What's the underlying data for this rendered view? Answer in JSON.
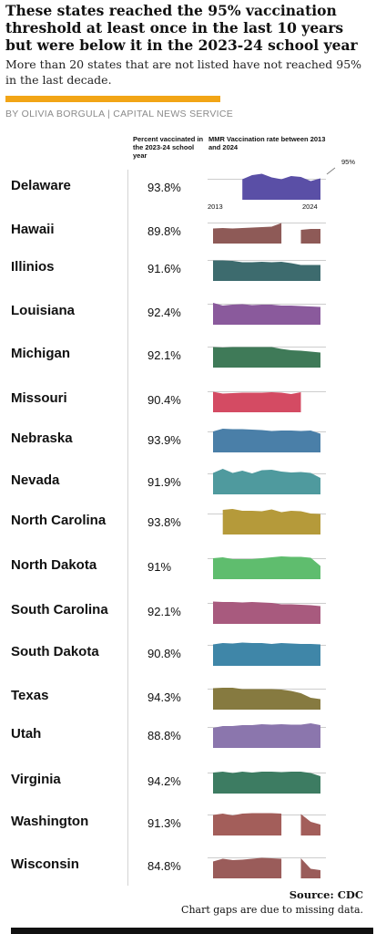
{
  "header": {
    "title": "These states reached the 95% vaccination threshold at least once in the last 10 years but were below it in the 2023-24 school year",
    "subtitle": "More than 20 states that are not listed have not reached 95% in the last decade.",
    "byline": "BY OLIVIA BORGULA | CAPITAL NEWS SERVICE"
  },
  "columns": {
    "pct_header": "Percent vaccinated in the 2023-24 school year",
    "rate_header": "MMR Vaccination rate between 2013 and 2024",
    "threshold_label": "95%",
    "axis_start": "2013",
    "axis_end": "2024"
  },
  "footer": {
    "source": "Source: CDC",
    "note": "Chart gaps are due to missing data."
  },
  "chart_data": {
    "type": "area",
    "title": "These states reached the 95% vaccination threshold at least once in the last 10 years but were below it in the 2023-24 school year",
    "x": [
      "2013",
      "2014",
      "2015",
      "2016",
      "2017",
      "2018",
      "2019",
      "2020",
      "2021",
      "2022",
      "2023",
      "2024"
    ],
    "threshold": 95,
    "ylim": [
      80,
      98
    ],
    "series": [
      {
        "name": "Delaware",
        "pct_label": "93.8%",
        "color": "#5a4fa6",
        "values": [
          null,
          null,
          null,
          95.0,
          95.9,
          96.2,
          95.4,
          95.0,
          95.7,
          95.5,
          94.6,
          95.2
        ]
      },
      {
        "name": "Hawaii",
        "pct_label": "89.8%",
        "color": "#8e5a57",
        "values": [
          93.8,
          93.9,
          93.8,
          93.9,
          94.0,
          94.1,
          94.2,
          95.0,
          null,
          93.5,
          93.7,
          93.7
        ]
      },
      {
        "name": "Illinios",
        "pct_label": "91.6%",
        "color": "#3d6b6e",
        "values": [
          95.0,
          95.0,
          94.9,
          94.6,
          94.6,
          94.7,
          94.6,
          94.7,
          94.4,
          94.0,
          94.0,
          94.0
        ]
      },
      {
        "name": "Louisiana",
        "pct_label": "92.4%",
        "color": "#8a5a9c",
        "values": [
          95.3,
          94.7,
          94.9,
          95.0,
          94.8,
          94.9,
          94.9,
          94.7,
          94.7,
          94.6,
          94.5,
          94.4
        ]
      },
      {
        "name": "Michigan",
        "pct_label": "92.1%",
        "color": "#3f7a58",
        "values": [
          95.0,
          94.9,
          95.0,
          95.0,
          95.0,
          95.0,
          95.0,
          94.6,
          94.3,
          94.2,
          94.0,
          93.8
        ]
      },
      {
        "name": "Missouri",
        "pct_label": "90.4%",
        "color": "#d44b63",
        "values": [
          95.0,
          94.6,
          94.7,
          94.8,
          94.8,
          94.8,
          94.9,
          94.8,
          94.5,
          94.9,
          null,
          95.2
        ]
      },
      {
        "name": "Nebraska",
        "pct_label": "93.9%",
        "color": "#4a7fa8",
        "values": [
          95.1,
          95.7,
          95.6,
          95.6,
          95.5,
          95.4,
          95.2,
          95.3,
          95.3,
          95.2,
          95.3,
          94.6
        ]
      },
      {
        "name": "Nevada",
        "pct_label": "91.9%",
        "color": "#4f9a9e",
        "values": [
          95.2,
          96.1,
          95.2,
          95.7,
          95.1,
          95.8,
          95.9,
          95.5,
          95.3,
          95.4,
          95.2,
          94.1
        ]
      },
      {
        "name": "North Carolina",
        "pct_label": "93.8%",
        "color": "#b59a3a",
        "values": [
          null,
          95.9,
          96.1,
          95.7,
          95.7,
          95.6,
          96.0,
          95.4,
          95.7,
          95.6,
          95.1,
          95.0
        ]
      },
      {
        "name": "North Dakota",
        "pct_label": "91%",
        "color": "#5fbd6e",
        "values": [
          95.1,
          95.3,
          94.9,
          94.9,
          94.9,
          95.1,
          95.3,
          95.5,
          95.4,
          95.4,
          95.2,
          93.4
        ]
      },
      {
        "name": "South Carolina",
        "pct_label": "92.1%",
        "color": "#a85a7e",
        "values": [
          95.4,
          95.3,
          95.3,
          95.2,
          95.3,
          95.2,
          95.1,
          94.8,
          94.8,
          94.7,
          94.6,
          94.4
        ]
      },
      {
        "name": "South Dakota",
        "pct_label": "90.8%",
        "color": "#3f86a8",
        "values": [
          95.2,
          95.5,
          95.4,
          95.6,
          95.5,
          95.5,
          95.3,
          95.5,
          95.4,
          95.3,
          95.3,
          95.2
        ]
      },
      {
        "name": "Texas",
        "pct_label": "94.3%",
        "color": "#867a40",
        "values": [
          95.2,
          95.3,
          95.3,
          95.0,
          95.0,
          95.0,
          95.0,
          94.9,
          94.6,
          94.1,
          93.1,
          92.8
        ]
      },
      {
        "name": "Utah",
        "pct_label": "88.8%",
        "color": "#8b76ad",
        "values": [
          94.9,
          95.3,
          95.3,
          95.5,
          95.5,
          95.7,
          95.6,
          95.7,
          95.6,
          95.6,
          95.9,
          95.5
        ]
      },
      {
        "name": "Virginia",
        "pct_label": "94.2%",
        "color": "#3d7c62",
        "values": [
          95.1,
          95.3,
          95.0,
          95.3,
          95.1,
          95.3,
          95.3,
          95.2,
          95.3,
          95.3,
          95.0,
          94.3
        ]
      },
      {
        "name": "Washington",
        "pct_label": "91.3%",
        "color": "#a35e5a",
        "values": [
          95.0,
          95.3,
          94.9,
          95.3,
          95.4,
          95.4,
          95.4,
          95.3,
          null,
          95.2,
          93.5,
          92.9
        ]
      },
      {
        "name": "Wisconsin",
        "pct_label": "84.8%",
        "color": "#9a5c5a",
        "values": [
          null,
          null,
          null,
          null,
          null,
          null,
          null,
          null,
          null,
          null,
          null,
          null
        ]
      }
    ]
  }
}
